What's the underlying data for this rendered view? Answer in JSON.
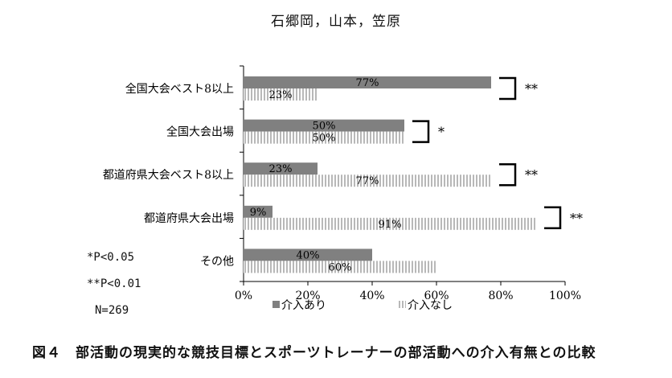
{
  "header": {
    "authors": "石郷岡，山本，笠原"
  },
  "caption": "図４　部活動の現実的な競技目標とスポーツトレーナーの部活動への介入有無との比較",
  "notes": [
    "*P<0.05",
    "**P<0.01",
    "N=269"
  ],
  "chart_data": {
    "type": "bar",
    "orientation": "horizontal",
    "stacked": false,
    "categories": [
      "全国大会ベスト8以上",
      "全国大会出場",
      "都道府県大会ベスト8以上",
      "都道府県大会出場",
      "その他"
    ],
    "series": [
      {
        "name": "介入あり",
        "values": [
          77,
          50,
          23,
          9,
          40
        ],
        "labels": [
          "77%",
          "50%",
          "23%",
          "9%",
          "40%"
        ],
        "color": "#808080",
        "pattern": "solid"
      },
      {
        "name": "介入なし",
        "values": [
          23,
          50,
          77,
          91,
          60
        ],
        "labels": [
          "23%",
          "50%",
          "77%",
          "91%",
          "60%"
        ],
        "color": "#c8c8c8",
        "pattern": "vertical-stripes"
      }
    ],
    "significance": [
      "**",
      "*",
      "**",
      "**",
      ""
    ],
    "xlim": [
      0,
      100
    ],
    "xticks": [
      "0%",
      "20%",
      "40%",
      "60%",
      "80%",
      "100%"
    ],
    "legend": "bottom",
    "grid": false
  }
}
